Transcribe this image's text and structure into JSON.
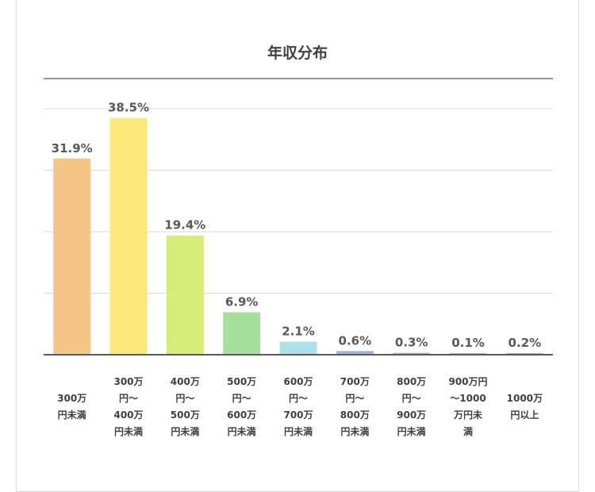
{
  "chart_data": {
    "type": "bar",
    "title": "年収分布",
    "xlabel": "",
    "ylabel": "",
    "ylim": [
      0,
      40
    ],
    "grid": true,
    "categories": [
      "300万\n円未満",
      "300万\n円～\n400万\n円未満",
      "400万\n円～\n500万\n円未満",
      "500万\n円～\n600万\n円未満",
      "600万\n円～\n700万\n円未満",
      "700万\n円～\n800万\n円未満",
      "800万\n円～\n900万\n円未満",
      "900万円\n～1000\n万円未\n満",
      "1000万\n円以上"
    ],
    "values": [
      31.9,
      38.5,
      19.4,
      6.9,
      2.1,
      0.6,
      0.3,
      0.1,
      0.2
    ],
    "value_labels": [
      "31.9%",
      "38.5%",
      "19.4%",
      "6.9%",
      "2.1%",
      "0.6%",
      "0.3%",
      "0.1%",
      "0.2%"
    ],
    "colors": [
      "#f4c584",
      "#fde97a",
      "#d4ee78",
      "#a5e09a",
      "#a9e3e9",
      "#9eb4db",
      "#b3aed8",
      "#c9aed6",
      "#e8a3a8"
    ]
  }
}
